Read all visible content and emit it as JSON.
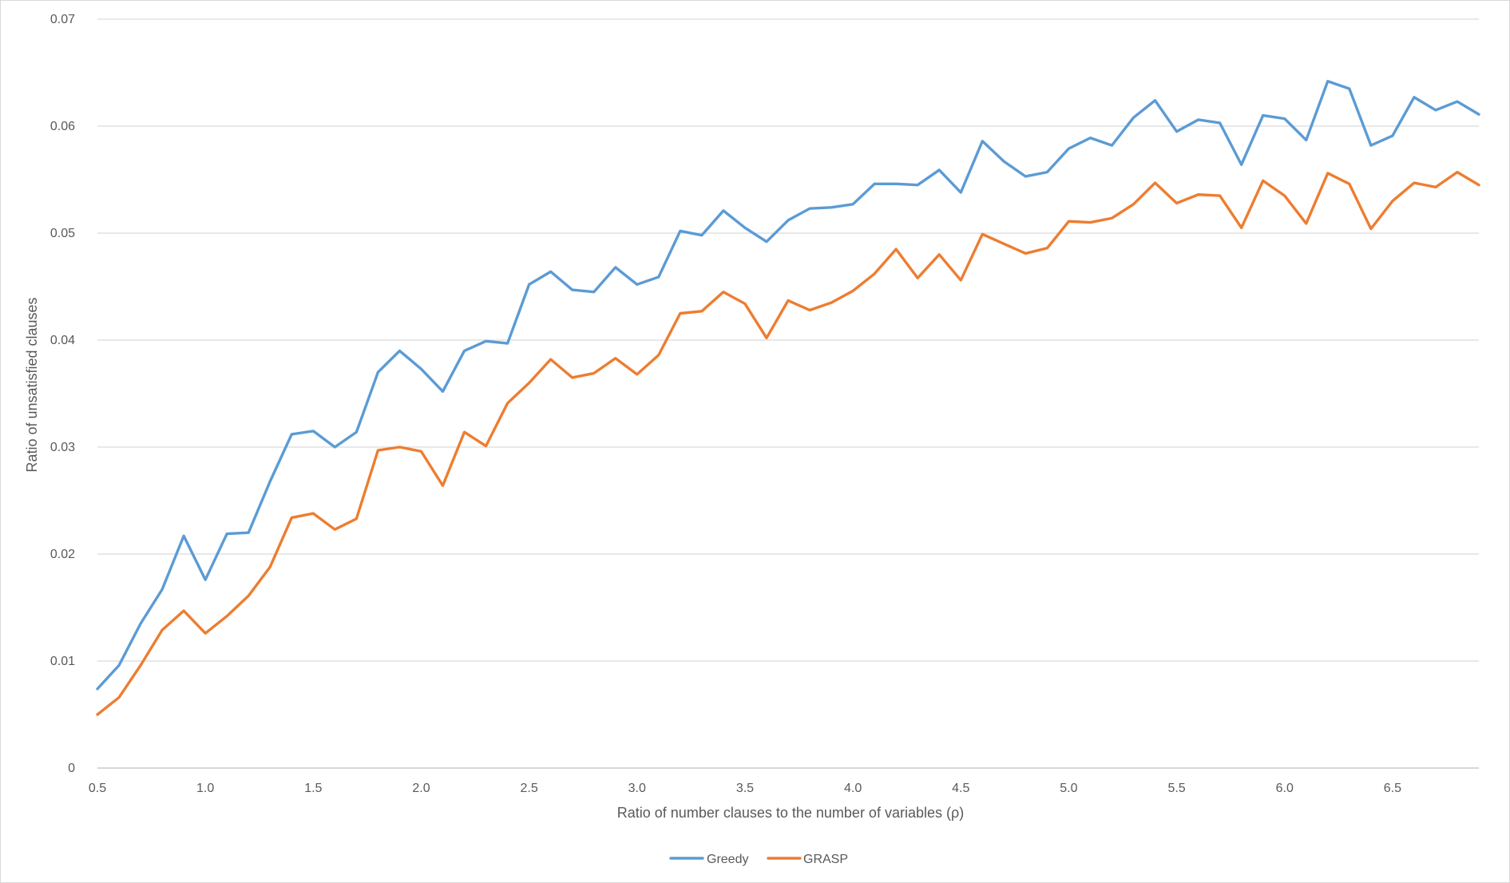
{
  "chart_data": {
    "type": "line",
    "title": "",
    "xlabel": "Ratio of number clauses to the number of variables (ρ)",
    "ylabel": "Ratio of unsatisfied clauses",
    "xlim": [
      0.5,
      6.9
    ],
    "ylim": [
      0,
      0.07
    ],
    "x_ticks": [
      "0.5",
      "1.0",
      "1.5",
      "2.0",
      "2.5",
      "3.0",
      "3.5",
      "4.0",
      "4.5",
      "5.0",
      "5.5",
      "6.0",
      "6.5"
    ],
    "y_ticks": [
      "0",
      "0.01",
      "0.02",
      "0.03",
      "0.04",
      "0.05",
      "0.06",
      "0.07"
    ],
    "grid": true,
    "legend_position": "bottom",
    "x": [
      0.5,
      0.6,
      0.7,
      0.8,
      0.9,
      1.0,
      1.1,
      1.2,
      1.3,
      1.4,
      1.5,
      1.6,
      1.7,
      1.8,
      1.9,
      2.0,
      2.1,
      2.2,
      2.3,
      2.4,
      2.5,
      2.6,
      2.7,
      2.8,
      2.9,
      3.0,
      3.1,
      3.2,
      3.3,
      3.4,
      3.5,
      3.6,
      3.7,
      3.8,
      3.9,
      4.0,
      4.1,
      4.2,
      4.3,
      4.4,
      4.5,
      4.6,
      4.7,
      4.8,
      4.9,
      5.0,
      5.1,
      5.2,
      5.3,
      5.4,
      5.5,
      5.6,
      5.7,
      5.8,
      5.9,
      6.0,
      6.1,
      6.2,
      6.3,
      6.4,
      6.5,
      6.6,
      6.7,
      6.8,
      6.9
    ],
    "series": [
      {
        "name": "Greedy",
        "color": "#5b9bd5",
        "values": [
          0.0074,
          0.0096,
          0.0135,
          0.0167,
          0.0217,
          0.0176,
          0.0219,
          0.022,
          0.0268,
          0.0312,
          0.0315,
          0.03,
          0.0314,
          0.037,
          0.039,
          0.0373,
          0.0352,
          0.039,
          0.0399,
          0.0397,
          0.0452,
          0.0464,
          0.0447,
          0.0445,
          0.0468,
          0.0452,
          0.0459,
          0.0502,
          0.0498,
          0.0521,
          0.0505,
          0.0492,
          0.0512,
          0.0523,
          0.0524,
          0.0527,
          0.0546,
          0.0546,
          0.0545,
          0.0559,
          0.0538,
          0.0586,
          0.0567,
          0.0553,
          0.0557,
          0.0579,
          0.0589,
          0.0582,
          0.0608,
          0.0624,
          0.0595,
          0.0606,
          0.0603,
          0.0564,
          0.061,
          0.0607,
          0.0587,
          0.0642,
          0.0635,
          0.0582,
          0.0591,
          0.0627,
          0.0615,
          0.0623,
          0.0611
        ]
      },
      {
        "name": "GRASP",
        "color": "#ed7d31",
        "values": [
          0.005,
          0.0066,
          0.0096,
          0.0129,
          0.0147,
          0.0126,
          0.0142,
          0.0161,
          0.0188,
          0.0234,
          0.0238,
          0.0223,
          0.0233,
          0.0297,
          0.03,
          0.0296,
          0.0264,
          0.0314,
          0.0301,
          0.0341,
          0.036,
          0.0382,
          0.0365,
          0.0369,
          0.0383,
          0.0368,
          0.0386,
          0.0425,
          0.0427,
          0.0445,
          0.0434,
          0.0402,
          0.0437,
          0.0428,
          0.0435,
          0.0446,
          0.0462,
          0.0485,
          0.0458,
          0.048,
          0.0456,
          0.0499,
          0.049,
          0.0481,
          0.0486,
          0.0511,
          0.051,
          0.0514,
          0.0527,
          0.0547,
          0.0528,
          0.0536,
          0.0535,
          0.0505,
          0.0549,
          0.0535,
          0.0509,
          0.0556,
          0.0546,
          0.0504,
          0.053,
          0.0547,
          0.0543,
          0.0557,
          0.0545
        ]
      }
    ]
  }
}
